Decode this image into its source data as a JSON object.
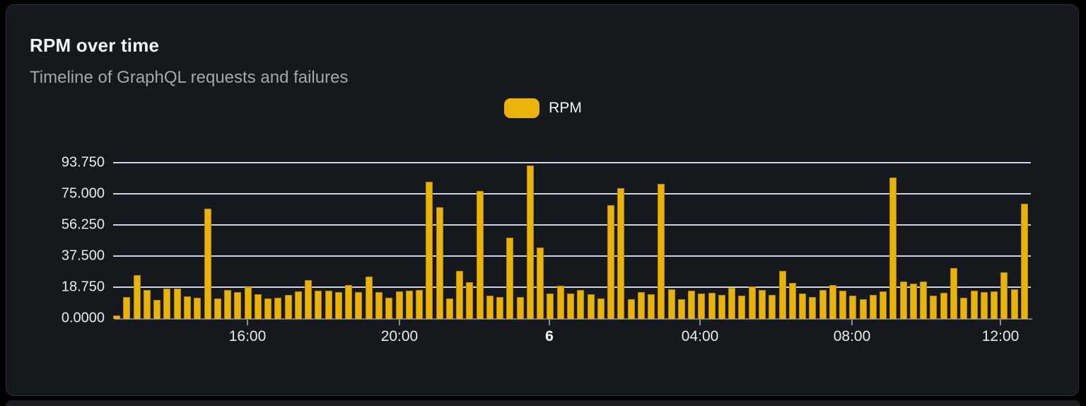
{
  "card": {
    "title": "RPM over time",
    "subtitle": "Timeline of GraphQL requests and failures"
  },
  "legend": {
    "items": [
      {
        "label": "RPM",
        "color": "#eab308"
      }
    ]
  },
  "colors": {
    "page_background": "#000000",
    "card_background": "#15181c",
    "card_border": "#2b2e34",
    "bar": "#eab308",
    "gridline": "#dee1ec",
    "axis_line": "#74777f",
    "title_text": "#f4f5f7",
    "subtitle_text": "#a3a8af",
    "axis_label_text": "#e8eaed"
  },
  "chart_data": {
    "type": "bar",
    "title": "RPM over time",
    "subtitle": "Timeline of GraphQL requests and failures",
    "xlabel": "",
    "ylabel": "",
    "ylim": [
      0,
      93.75
    ],
    "grid": true,
    "legend_position": "top-center",
    "y_ticks": [
      {
        "label": "0.0000",
        "value": 0
      },
      {
        "label": "18.750",
        "value": 18.75
      },
      {
        "label": "37.500",
        "value": 37.5
      },
      {
        "label": "56.250",
        "value": 56.25
      },
      {
        "label": "75.000",
        "value": 75
      },
      {
        "label": "93.750",
        "value": 93.75
      }
    ],
    "x_ticks": [
      {
        "label": "16:00",
        "pos": 0.1464,
        "bold": false
      },
      {
        "label": "20:00",
        "pos": 0.312,
        "bold": false
      },
      {
        "label": "6",
        "pos": 0.4753,
        "bold": true
      },
      {
        "label": "04:00",
        "pos": 0.6395,
        "bold": false
      },
      {
        "label": "08:00",
        "pos": 0.8051,
        "bold": false
      },
      {
        "label": "12:00",
        "pos": 0.9669,
        "bold": false
      }
    ],
    "series": [
      {
        "name": "RPM",
        "values": [
          2,
          13.3,
          26.3,
          17.3,
          11.5,
          18.3,
          18.3,
          13.7,
          13,
          66.5,
          12.3,
          17.3,
          16.2,
          19,
          15.1,
          12.3,
          12.7,
          14.4,
          16.6,
          23.5,
          17,
          17,
          16,
          20.6,
          16,
          25.6,
          16.1,
          12.8,
          16.7,
          17,
          17.3,
          82.6,
          67.5,
          12.3,
          28.9,
          22,
          77,
          14.1,
          13.3,
          48.9,
          13.3,
          92.3,
          43.2,
          15.4,
          20,
          15.5,
          17.3,
          15,
          12.3,
          68.8,
          78.9,
          12,
          16,
          15,
          81.5,
          18,
          11.8,
          17,
          15.2,
          15.9,
          14.7,
          18.8,
          14.1,
          19.8,
          17.6,
          14.7,
          28.9,
          21.6,
          15.4,
          13.3,
          17.3,
          20.5,
          17,
          14.1,
          12,
          14.4,
          16.6,
          85.1,
          22.8,
          21.2,
          22.8,
          14,
          15.9,
          30.6,
          13,
          16.9,
          16.2,
          16.6,
          28.1,
          18,
          69.3
        ]
      }
    ]
  }
}
